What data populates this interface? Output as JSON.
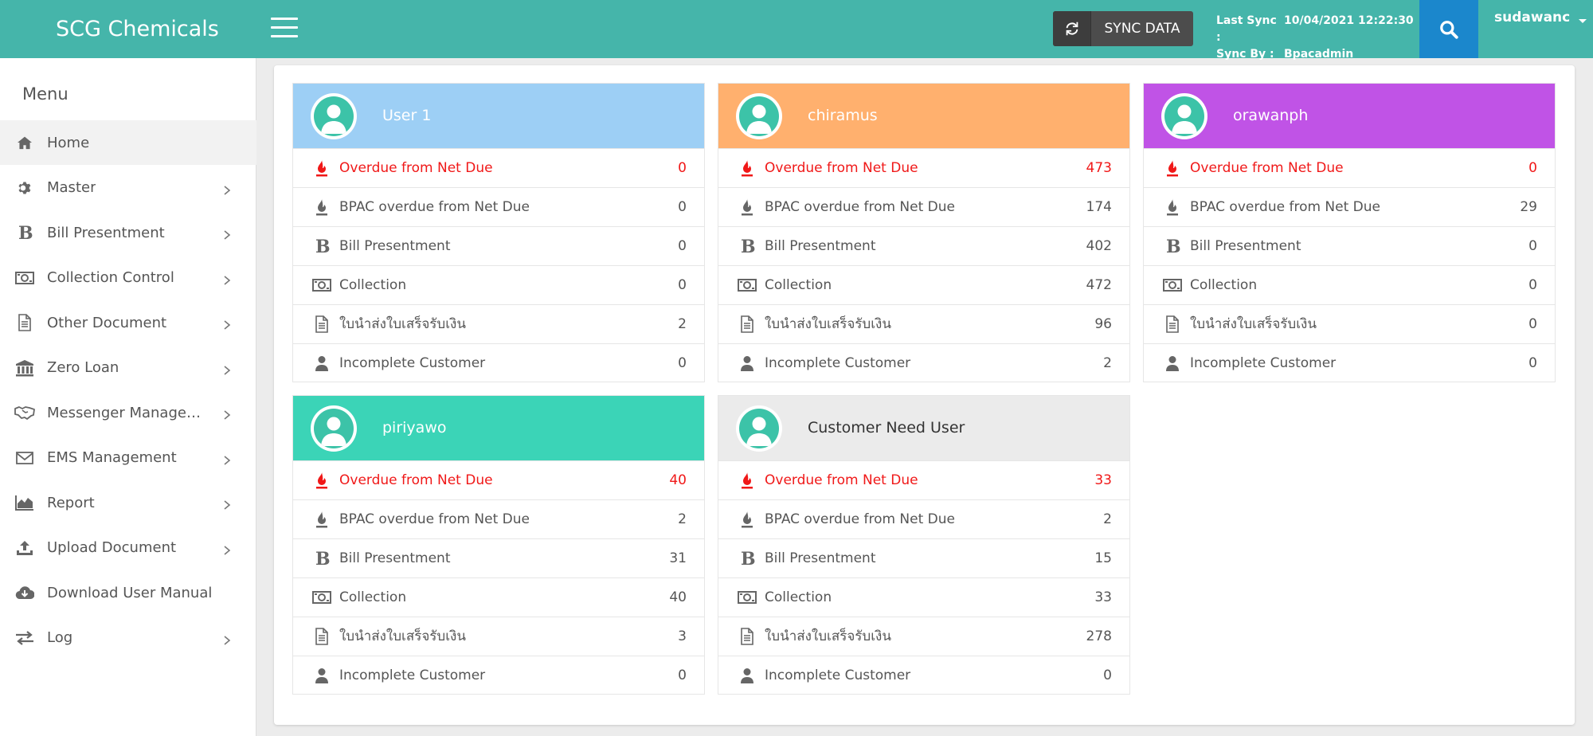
{
  "app": {
    "brand": "SCG Chemicals"
  },
  "header": {
    "sync_label": "SYNC DATA",
    "last_sync_key": "Last Sync :",
    "last_sync_value": "10/04/2021 12:22:30",
    "sync_by_key": "Sync By :",
    "sync_by_value": "Bpacadmin",
    "username": "sudawanc"
  },
  "sidebar": {
    "title": "Menu",
    "items": [
      {
        "label": "Home",
        "icon": "home-icon"
      },
      {
        "label": "Master",
        "icon": "gear-icon"
      },
      {
        "label": "Bill Presentment",
        "icon": "bold-b-icon"
      },
      {
        "label": "Collection Control",
        "icon": "money-icon"
      },
      {
        "label": "Other Document",
        "icon": "document-icon"
      },
      {
        "label": "Zero Loan",
        "icon": "bank-icon"
      },
      {
        "label": "Messenger Management",
        "icon": "handshake-icon"
      },
      {
        "label": "EMS Management",
        "icon": "envelope-icon"
      },
      {
        "label": "Report",
        "icon": "area-chart-icon"
      },
      {
        "label": "Upload Document",
        "icon": "upload-icon"
      },
      {
        "label": "Download User Manual",
        "icon": "cloud-download-icon"
      },
      {
        "label": "Log",
        "icon": "exchange-icon"
      }
    ]
  },
  "colors": {
    "header": "#45b5aa",
    "card1": "#9dcff5",
    "card2": "#ffb06e",
    "card3": "#c053e6",
    "card4": "#3bd4b7",
    "card5": "#ebebeb",
    "overdue_red": "#f01818"
  },
  "row_labels": {
    "overdue": "Overdue from Net Due",
    "bpac": "BPAC overdue from Net Due",
    "bill": "Bill Presentment",
    "collection": "Collection",
    "receipt": "ใบนำส่งใบเสร็จรับเงิน",
    "incomplete": "Incomplete Customer"
  },
  "cards": [
    {
      "title": "User 1",
      "overdue": "0",
      "bpac": "0",
      "bill": "0",
      "collection": "0",
      "receipt": "2",
      "incomplete": "0"
    },
    {
      "title": "chiramus",
      "overdue": "473",
      "bpac": "174",
      "bill": "402",
      "collection": "472",
      "receipt": "96",
      "incomplete": "2"
    },
    {
      "title": "orawanph",
      "overdue": "0",
      "bpac": "29",
      "bill": "0",
      "collection": "0",
      "receipt": "0",
      "incomplete": "0"
    },
    {
      "title": "piriyawo",
      "overdue": "40",
      "bpac": "2",
      "bill": "31",
      "collection": "40",
      "receipt": "3",
      "incomplete": "0"
    },
    {
      "title": "Customer Need User",
      "overdue": "33",
      "bpac": "2",
      "bill": "15",
      "collection": "33",
      "receipt": "278",
      "incomplete": "0"
    }
  ]
}
